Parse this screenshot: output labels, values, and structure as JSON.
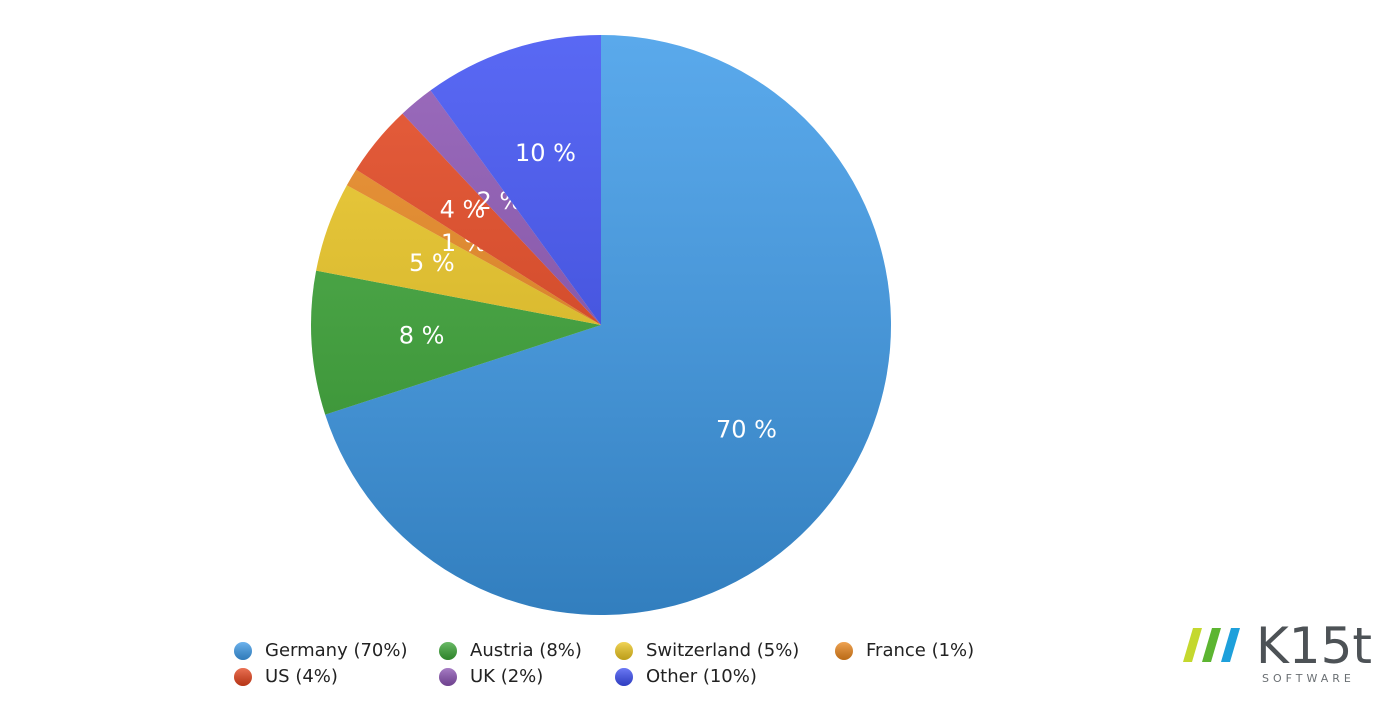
{
  "chart_data": {
    "type": "pie",
    "categories": [
      "Germany (70%)",
      "Austria (8%)",
      "Switzerland (5%)",
      "France (1%)",
      "US (4%)",
      "UK (2%)",
      "Other (10%)"
    ],
    "values": [
      70,
      8,
      5,
      1,
      4,
      2,
      10
    ],
    "value_labels": [
      "70 %",
      "8 %",
      "5 %",
      "1 %",
      "4 %",
      "2 %",
      "10 %"
    ],
    "colors": [
      "#3d9ae8",
      "#3aa535",
      "#ecc620",
      "#ea861c",
      "#e4431c",
      "#8a52b2",
      "#3c4ef2"
    ],
    "legend": "bottom"
  },
  "logo": {
    "name": "K15t",
    "tagline": "SOFTWARE"
  }
}
